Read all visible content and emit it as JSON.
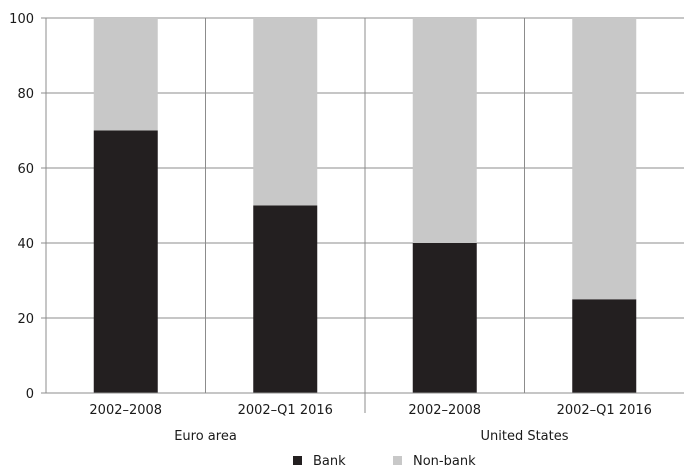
{
  "chart_data": {
    "type": "bar",
    "stacked": true,
    "groups": [
      {
        "label": "Euro area",
        "categories": [
          "2002–2008",
          "2002–Q1 2016"
        ]
      },
      {
        "label": "United States",
        "categories": [
          "2002–2008",
          "2002–Q1 2016"
        ]
      }
    ],
    "categories": [
      "2002–2008",
      "2002–Q1 2016",
      "2002–2008",
      "2002–Q1 2016"
    ],
    "series": [
      {
        "name": "Bank",
        "color": "#231f20",
        "values": [
          70,
          50,
          40,
          25
        ]
      },
      {
        "name": "Non-bank",
        "color": "#c8c8c8",
        "values": [
          30,
          50,
          60,
          75
        ]
      }
    ],
    "ylim": [
      0,
      100
    ],
    "yticks": [
      0,
      20,
      40,
      60,
      80,
      100
    ],
    "grid": true,
    "legend_position": "bottom",
    "title": "",
    "xlabel": "",
    "ylabel": ""
  }
}
